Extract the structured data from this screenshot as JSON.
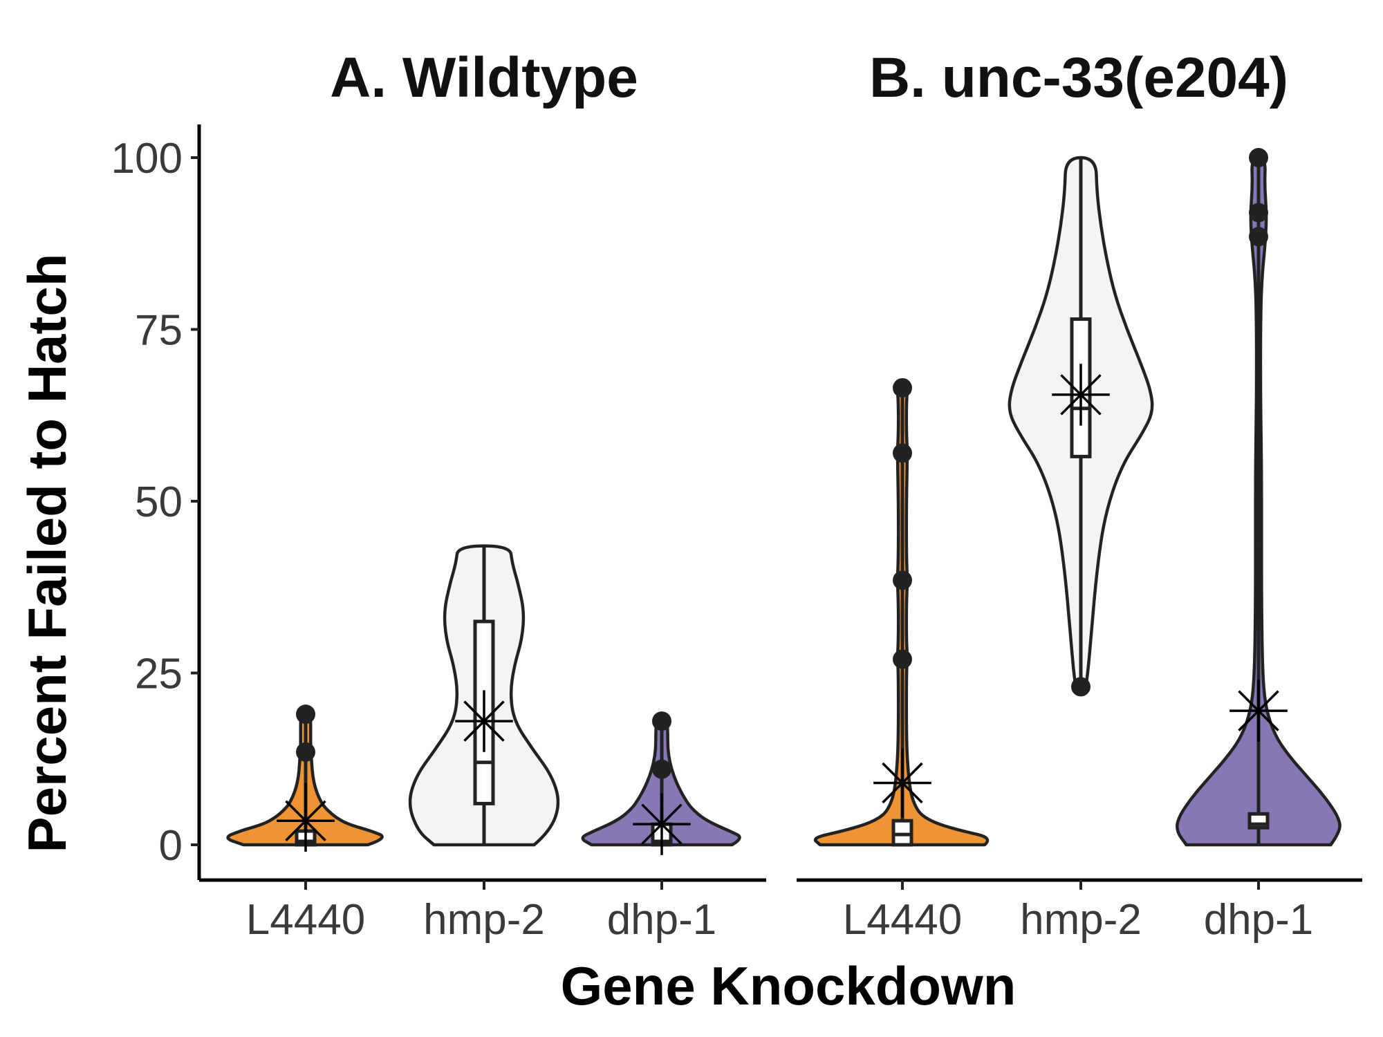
{
  "chart_data": {
    "type": "violin",
    "xlabel": "Gene Knockdown",
    "ylabel": "Percent Failed to Hatch",
    "ylim": [
      -5,
      105
    ],
    "yticks": [
      0,
      25,
      50,
      75,
      100
    ],
    "categories": [
      "L4440",
      "hmp-2",
      "dhp-1"
    ],
    "colors": {
      "L4440": "#EE9434",
      "hmp-2": "#F4F4F4",
      "dhp-1": "#8778B5"
    },
    "grid": false,
    "legend": "none",
    "panels": [
      {
        "title": "A. Wildtype",
        "groups": [
          {
            "category": "L4440",
            "color": "#EE9434",
            "box": {
              "min": 0,
              "q1": 0,
              "median": 0.5,
              "q3": 2,
              "max": 4
            },
            "outliers": [
              13.5,
              19
            ],
            "mean": 3.5,
            "mean_ci": [
              -1,
              9
            ],
            "violin_profile": [
              [
                0,
                0.62
              ],
              [
                1,
                0.82
              ],
              [
                2,
                0.66
              ],
              [
                3,
                0.42
              ],
              [
                4,
                0.3
              ],
              [
                5,
                0.22
              ],
              [
                6,
                0.16
              ],
              [
                8,
                0.1
              ],
              [
                10,
                0.07
              ],
              [
                12,
                0.06
              ],
              [
                14,
                0.05
              ],
              [
                16,
                0.05
              ],
              [
                18,
                0.05
              ],
              [
                19,
                0.045
              ]
            ]
          },
          {
            "category": "hmp-2",
            "color": "#F4F4F4",
            "box": {
              "min": 0,
              "q1": 6,
              "median": 12,
              "q3": 32.5,
              "max": 43.5
            },
            "outliers": [],
            "mean": 18,
            "mean_ci": [
              13.5,
              22.5
            ],
            "violin_profile": [
              [
                0,
                0.5
              ],
              [
                2,
                0.66
              ],
              [
                6,
                0.76
              ],
              [
                10,
                0.68
              ],
              [
                14,
                0.48
              ],
              [
                18,
                0.3
              ],
              [
                22,
                0.26
              ],
              [
                26,
                0.3
              ],
              [
                30,
                0.38
              ],
              [
                34,
                0.4
              ],
              [
                38,
                0.34
              ],
              [
                41,
                0.28
              ],
              [
                43.5,
                0.26
              ]
            ]
          },
          {
            "category": "dhp-1",
            "color": "#8778B5",
            "box": {
              "min": 0,
              "q1": 0,
              "median": 0.5,
              "q3": 3,
              "max": 6
            },
            "outliers": [
              11,
              18
            ],
            "mean": 3,
            "mean_ci": [
              -1.5,
              7.5
            ],
            "violin_profile": [
              [
                0,
                0.7
              ],
              [
                1,
                0.82
              ],
              [
                2,
                0.68
              ],
              [
                3,
                0.52
              ],
              [
                4,
                0.4
              ],
              [
                5,
                0.32
              ],
              [
                6,
                0.26
              ],
              [
                8,
                0.18
              ],
              [
                10,
                0.12
              ],
              [
                12,
                0.08
              ],
              [
                14,
                0.06
              ],
              [
                16,
                0.06
              ],
              [
                18,
                0.055
              ]
            ]
          }
        ]
      },
      {
        "title": "B. unc-33(e204)",
        "groups": [
          {
            "category": "L4440",
            "color": "#EE9434",
            "box": {
              "min": 0,
              "q1": 0,
              "median": 1.5,
              "q3": 3.5,
              "max": 6
            },
            "outliers": [
              27,
              38.5,
              57,
              66.5
            ],
            "mean": 9,
            "mean_ci": [
              4,
              14
            ],
            "violin_profile": [
              [
                0,
                0.82
              ],
              [
                1,
                0.9
              ],
              [
                2,
                0.6
              ],
              [
                3,
                0.36
              ],
              [
                4,
                0.22
              ],
              [
                5,
                0.15
              ],
              [
                7,
                0.09
              ],
              [
                10,
                0.06
              ],
              [
                15,
                0.04
              ],
              [
                25,
                0.04
              ],
              [
                27,
                0.05
              ],
              [
                30,
                0.04
              ],
              [
                35,
                0.04
              ],
              [
                38.5,
                0.05
              ],
              [
                42,
                0.04
              ],
              [
                50,
                0.04
              ],
              [
                57,
                0.05
              ],
              [
                60,
                0.04
              ],
              [
                64,
                0.04
              ],
              [
                66.5,
                0.05
              ]
            ]
          },
          {
            "category": "hmp-2",
            "color": "#F4F4F4",
            "box": {
              "min": 36,
              "q1": 56.5,
              "median": 63.5,
              "q3": 76.5,
              "max": 100
            },
            "outliers": [
              23
            ],
            "mean": 65.5,
            "mean_ci": [
              61,
              70
            ],
            "violin_profile": [
              [
                23,
                0.05
              ],
              [
                25,
                0.07
              ],
              [
                30,
                0.1
              ],
              [
                40,
                0.16
              ],
              [
                48,
                0.24
              ],
              [
                55,
                0.4
              ],
              [
                60,
                0.62
              ],
              [
                63,
                0.72
              ],
              [
                66,
                0.7
              ],
              [
                70,
                0.6
              ],
              [
                75,
                0.46
              ],
              [
                80,
                0.34
              ],
              [
                85,
                0.26
              ],
              [
                90,
                0.2
              ],
              [
                95,
                0.16
              ],
              [
                100,
                0.15
              ]
            ]
          },
          {
            "category": "dhp-1",
            "color": "#8778B5",
            "box": {
              "min": 0,
              "q1": 2.5,
              "median": 3,
              "q3": 4.5,
              "max": 44
            },
            "outliers": [
              88.5,
              92,
              100
            ],
            "mean": 19.5,
            "mean_ci": [
              15,
              24
            ],
            "violin_profile": [
              [
                0,
                0.72
              ],
              [
                2,
                0.82
              ],
              [
                4,
                0.8
              ],
              [
                7,
                0.66
              ],
              [
                10,
                0.48
              ],
              [
                13,
                0.3
              ],
              [
                16,
                0.16
              ],
              [
                20,
                0.07
              ],
              [
                25,
                0.04
              ],
              [
                35,
                0.03
              ],
              [
                45,
                0.03
              ],
              [
                55,
                0.03
              ],
              [
                65,
                0.02
              ],
              [
                75,
                0.02
              ],
              [
                82,
                0.03
              ],
              [
                88,
                0.07
              ],
              [
                92,
                0.08
              ],
              [
                96,
                0.06
              ],
              [
                100,
                0.07
              ]
            ]
          }
        ]
      }
    ]
  }
}
